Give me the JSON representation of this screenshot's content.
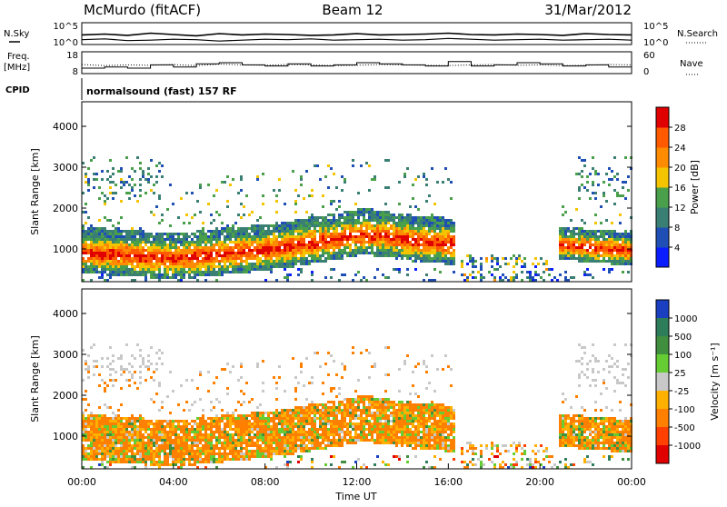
{
  "header": {
    "station": "McMurdo (fitACF)",
    "beam": "Beam 12",
    "date": "31/Mar/2012",
    "cpid_label": "CPID",
    "cpid_value": "normalsound (fast) 157 RF"
  },
  "strip_labels": {
    "n_sky": "N.Sky",
    "n_search": "N.Search",
    "freq": "Freq.",
    "freq_unit": "[MHz]",
    "nave": "Nave"
  },
  "chart_data": [
    {
      "type": "line",
      "name": "noise-strip",
      "yticks_left": [
        "10^5",
        "10^0"
      ],
      "yticks_right": [
        "10^5",
        "10^0"
      ],
      "series": [
        {
          "name": "N.Sky",
          "x": [
            0,
            1,
            2,
            3,
            4,
            5,
            6,
            7,
            8,
            9,
            10,
            11,
            12,
            13,
            14,
            15,
            16,
            17,
            18,
            19,
            20,
            21,
            22,
            23,
            24
          ],
          "values": [
            2.2,
            2.4,
            2.1,
            2.6,
            2.3,
            2.0,
            2.5,
            2.2,
            2.4,
            2.3,
            2.1,
            2.2,
            2.5,
            2.2,
            2.3,
            2.4,
            2.6,
            2.3,
            2.2,
            2.4,
            2.3,
            2.1,
            2.5,
            2.3,
            2.2
          ]
        },
        {
          "name": "N.Search",
          "x": [
            0,
            1,
            2,
            3,
            4,
            5,
            6,
            7,
            8,
            9,
            10,
            11,
            12,
            13,
            14,
            15,
            16,
            17,
            18,
            19,
            20,
            21,
            22,
            23,
            24
          ],
          "values": [
            1.1,
            1.3,
            0.9,
            1.0,
            1.2,
            1.1,
            0.8,
            1.0,
            1.2,
            1.1,
            1.3,
            1.0,
            1.1,
            1.2,
            1.0,
            1.1,
            1.4,
            1.2,
            1.0,
            1.1,
            1.2,
            1.0,
            1.1,
            1.2,
            1.0
          ]
        }
      ]
    },
    {
      "type": "line",
      "name": "freq-nave-strip",
      "yticks_left": [
        "18",
        "8"
      ],
      "yticks_right": [
        "60",
        "0"
      ],
      "series": [
        {
          "name": "Freq.",
          "x": [
            0,
            1,
            2,
            3,
            4,
            5,
            6,
            7,
            8,
            9,
            10,
            11,
            12,
            13,
            14,
            15,
            16,
            17,
            18,
            19,
            20,
            21,
            22,
            23,
            24
          ],
          "values": [
            10.5,
            11.0,
            10.5,
            12.0,
            11.0,
            12.5,
            13.0,
            12.0,
            11.5,
            12.5,
            11.5,
            12.0,
            13.0,
            12.5,
            12.0,
            11.5,
            13.5,
            11.5,
            12.0,
            13.0,
            12.5,
            11.5,
            12.0,
            11.0,
            12.0
          ]
        },
        {
          "name": "Nave",
          "x": [
            0,
            1,
            2,
            3,
            4,
            5,
            6,
            7,
            8,
            9,
            10,
            11,
            12,
            13,
            14,
            15,
            16,
            17,
            18,
            19,
            20,
            21,
            22,
            23,
            24
          ],
          "values": [
            25,
            22,
            24,
            23,
            25,
            22,
            26,
            24,
            23,
            25,
            24,
            22,
            23,
            25,
            24,
            23,
            22,
            24,
            25,
            23,
            24,
            22,
            23,
            25,
            24
          ]
        }
      ]
    },
    {
      "type": "heatmap",
      "name": "power-panel",
      "ylabel": "Slant Range [km]",
      "yticks": [
        "1000",
        "2000",
        "3000",
        "4000"
      ],
      "xlim": [
        0,
        24
      ],
      "ylim": [
        200,
        4600
      ],
      "colorbar": {
        "label": "Power [dB]",
        "ticks": [
          "4",
          "8",
          "12",
          "16",
          "20",
          "24",
          "28"
        ],
        "colors": [
          "#0a1dff",
          "#1f4fb5",
          "#3a7f73",
          "#4aa04a",
          "#f5c400",
          "#ff8c00",
          "#ff5a00",
          "#e00000"
        ]
      },
      "bands": [
        {
          "x_start": 0,
          "x_end": 16.3,
          "range_base": [
            900,
            860,
            820,
            780,
            760,
            800,
            860,
            920,
            980,
            1060,
            1150,
            1250,
            1350,
            1300,
            1200,
            1150,
            1100
          ],
          "thickness": 420
        },
        {
          "x_start": 20.8,
          "x_end": 24,
          "range_base": [
            1100,
            1050,
            1000,
            950
          ],
          "thickness": 300
        }
      ]
    },
    {
      "type": "heatmap",
      "name": "velocity-panel",
      "xlabel": "Time UT",
      "ylabel": "Slant Range [km]",
      "xticks": [
        "00:00",
        "04:00",
        "08:00",
        "12:00",
        "16:00",
        "20:00",
        "00:00"
      ],
      "yticks": [
        "1000",
        "2000",
        "3000",
        "4000"
      ],
      "xlim": [
        0,
        24
      ],
      "ylim": [
        200,
        4600
      ],
      "colorbar": {
        "label": "Velocity [m s⁻¹]",
        "ticks": [
          "1000",
          "500",
          "100",
          "25",
          "-25",
          "-100",
          "-500",
          "-1000"
        ],
        "colors": [
          "#1a3fc0",
          "#2e7d5a",
          "#3f8f3f",
          "#66cc33",
          "#c8c8c8",
          "#ffb000",
          "#ff8000",
          "#ff4000",
          "#e00000"
        ]
      }
    }
  ]
}
